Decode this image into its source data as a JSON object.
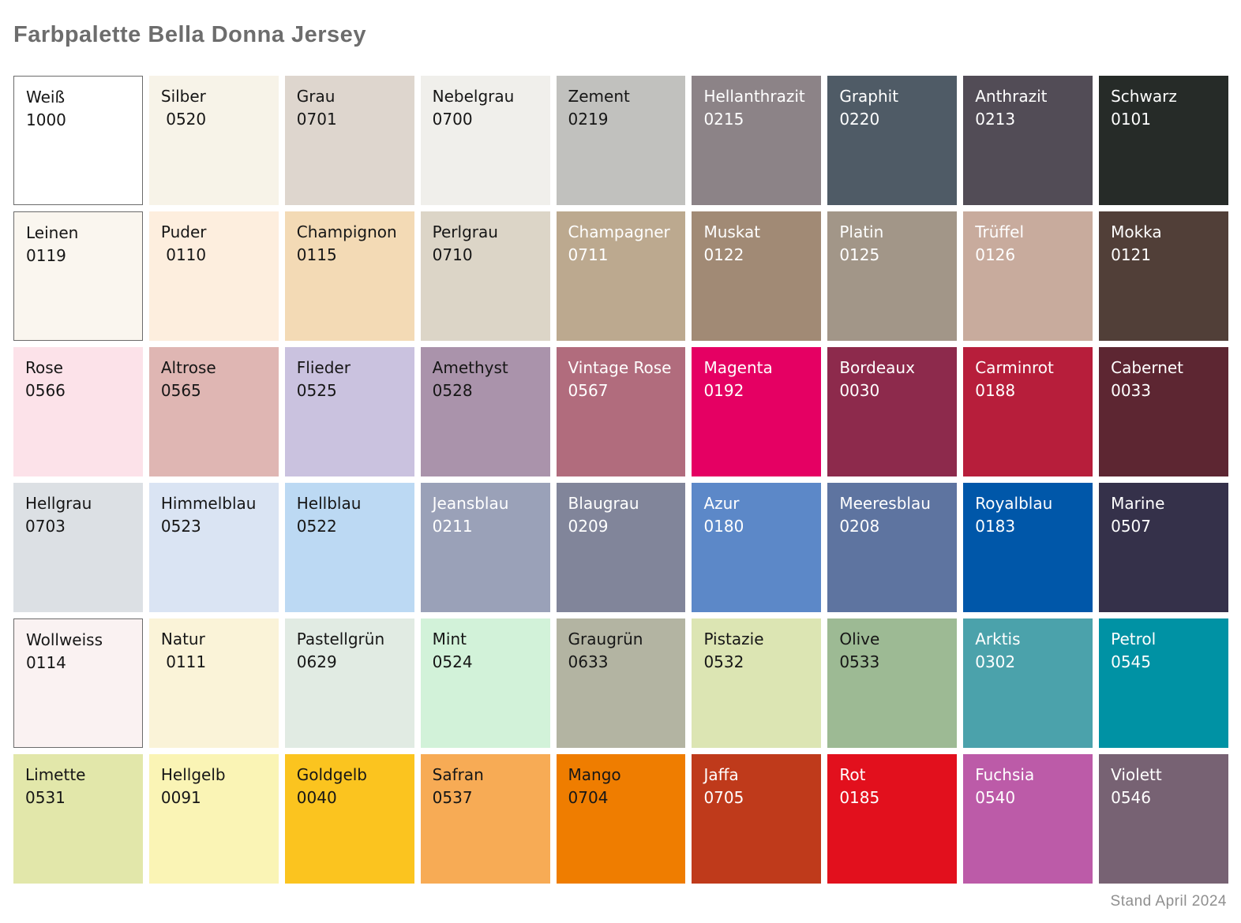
{
  "title": "Farbpalette Bella Donna Jersey",
  "footer": {
    "status_text": "Stand April 2024"
  },
  "palette": {
    "columns": 9,
    "rows": 6,
    "text_colors": {
      "dark": "#161616",
      "light": "#ffffff"
    },
    "outline_color": "#6b6b6b",
    "swatches": [
      {
        "name": "Weiß",
        "code": "1000",
        "color": "#ffffff",
        "text_tone": "dark",
        "outlined": true
      },
      {
        "name": "Silber",
        "code": " 0520",
        "color": "#f7f3e8",
        "text_tone": "dark",
        "outlined": false
      },
      {
        "name": "Grau",
        "code": "0701",
        "color": "#ded6ce",
        "text_tone": "dark",
        "outlined": false
      },
      {
        "name": "Nebelgrau",
        "code": "0700",
        "color": "#f0efeb",
        "text_tone": "dark",
        "outlined": false
      },
      {
        "name": "Zement",
        "code": "0219",
        "color": "#c1c1be",
        "text_tone": "dark",
        "outlined": false
      },
      {
        "name": "Hellanthrazit",
        "code": "0215",
        "color": "#8c8387",
        "text_tone": "light",
        "outlined": false
      },
      {
        "name": "Graphit",
        "code": "0220",
        "color": "#4f5b66",
        "text_tone": "light",
        "outlined": false
      },
      {
        "name": "Anthrazit",
        "code": "0213",
        "color": "#524c56",
        "text_tone": "light",
        "outlined": false
      },
      {
        "name": "Schwarz",
        "code": "0101",
        "color": "#262b28",
        "text_tone": "light",
        "outlined": false
      },
      {
        "name": "Leinen",
        "code": "0119",
        "color": "#faf6ef",
        "text_tone": "dark",
        "outlined": true
      },
      {
        "name": "Puder",
        "code": " 0110",
        "color": "#fdeede",
        "text_tone": "dark",
        "outlined": false
      },
      {
        "name": "Champignon",
        "code": "0115",
        "color": "#f3dab5",
        "text_tone": "dark",
        "outlined": false
      },
      {
        "name": "Perlgrau",
        "code": "0710",
        "color": "#dcd5c7",
        "text_tone": "dark",
        "outlined": false
      },
      {
        "name": "Champagner",
        "code": "0711",
        "color": "#bca98f",
        "text_tone": "light",
        "outlined": false
      },
      {
        "name": "Muskat",
        "code": "0122",
        "color": "#a18a75",
        "text_tone": "light",
        "outlined": false
      },
      {
        "name": "Platin",
        "code": "0125",
        "color": "#a29688",
        "text_tone": "light",
        "outlined": false
      },
      {
        "name": "Trüffel",
        "code": "0126",
        "color": "#c8ab9d",
        "text_tone": "light",
        "outlined": false
      },
      {
        "name": "Mokka",
        "code": "0121",
        "color": "#513f38",
        "text_tone": "light",
        "outlined": false
      },
      {
        "name": "Rose",
        "code": "0566",
        "color": "#fce2e9",
        "text_tone": "dark",
        "outlined": false
      },
      {
        "name": "Altrose",
        "code": "0565",
        "color": "#dfb6b3",
        "text_tone": "dark",
        "outlined": false
      },
      {
        "name": "Flieder",
        "code": "0525",
        "color": "#cac2df",
        "text_tone": "dark",
        "outlined": false
      },
      {
        "name": "Amethyst",
        "code": "0528",
        "color": "#aa93ab",
        "text_tone": "dark",
        "outlined": false
      },
      {
        "name": "Vintage Rose",
        "code": "0567",
        "color": "#b16c7d",
        "text_tone": "light",
        "outlined": false
      },
      {
        "name": "Magenta",
        "code": "0192",
        "color": "#e50063",
        "text_tone": "light",
        "outlined": false
      },
      {
        "name": "Bordeaux",
        "code": "0030",
        "color": "#8d2a4c",
        "text_tone": "light",
        "outlined": false
      },
      {
        "name": "Carminrot",
        "code": "0188",
        "color": "#b71e3b",
        "text_tone": "light",
        "outlined": false
      },
      {
        "name": "Cabernet",
        "code": "0033",
        "color": "#5d2632",
        "text_tone": "light",
        "outlined": false
      },
      {
        "name": "Hellgrau",
        "code": "0703",
        "color": "#dce0e4",
        "text_tone": "dark",
        "outlined": false
      },
      {
        "name": "Himmelblau",
        "code": "0523",
        "color": "#dae4f3",
        "text_tone": "dark",
        "outlined": false
      },
      {
        "name": "Hellblau",
        "code": "0522",
        "color": "#bcd9f3",
        "text_tone": "dark",
        "outlined": false
      },
      {
        "name": "Jeansblau",
        "code": "0211",
        "color": "#9aa1b8",
        "text_tone": "light",
        "outlined": false
      },
      {
        "name": "Blaugrau",
        "code": "0209",
        "color": "#81859a",
        "text_tone": "light",
        "outlined": false
      },
      {
        "name": "Azur",
        "code": "0180",
        "color": "#5c88c8",
        "text_tone": "light",
        "outlined": false
      },
      {
        "name": "Meeresblau",
        "code": "0208",
        "color": "#5e74a0",
        "text_tone": "light",
        "outlined": false
      },
      {
        "name": "Royalblau",
        "code": "0183",
        "color": "#0057a9",
        "text_tone": "light",
        "outlined": false
      },
      {
        "name": "Marine",
        "code": "0507",
        "color": "#35314a",
        "text_tone": "light",
        "outlined": false
      },
      {
        "name": "Wollweiss",
        "code": "0114",
        "color": "#faf2f2",
        "text_tone": "dark",
        "outlined": true
      },
      {
        "name": "Natur",
        "code": " 0111",
        "color": "#faf3d8",
        "text_tone": "dark",
        "outlined": false
      },
      {
        "name": "Pastellgrün",
        "code": "0629",
        "color": "#e1ebe3",
        "text_tone": "dark",
        "outlined": false
      },
      {
        "name": "Mint",
        "code": "0524",
        "color": "#d2f2d9",
        "text_tone": "dark",
        "outlined": false
      },
      {
        "name": "Graugrün",
        "code": "0633",
        "color": "#b3b4a2",
        "text_tone": "dark",
        "outlined": false
      },
      {
        "name": "Pistazie",
        "code": "0532",
        "color": "#dce5b3",
        "text_tone": "dark",
        "outlined": false
      },
      {
        "name": "Olive",
        "code": "0533",
        "color": "#9dba94",
        "text_tone": "dark",
        "outlined": false
      },
      {
        "name": "Arktis",
        "code": "0302",
        "color": "#4ba2ab",
        "text_tone": "light",
        "outlined": false
      },
      {
        "name": "Petrol",
        "code": "0545",
        "color": "#0092a4",
        "text_tone": "light",
        "outlined": false
      },
      {
        "name": "Limette",
        "code": "0531",
        "color": "#e2e7aa",
        "text_tone": "dark",
        "outlined": false
      },
      {
        "name": "Hellgelb",
        "code": "0091",
        "color": "#faf4b5",
        "text_tone": "dark",
        "outlined": false
      },
      {
        "name": "Goldgelb",
        "code": "0040",
        "color": "#fbc41f",
        "text_tone": "dark",
        "outlined": false
      },
      {
        "name": "Safran",
        "code": "0537",
        "color": "#f7ab55",
        "text_tone": "dark",
        "outlined": false
      },
      {
        "name": "Mango",
        "code": "0704",
        "color": "#ef7d00",
        "text_tone": "dark",
        "outlined": false
      },
      {
        "name": "Jaffa",
        "code": "0705",
        "color": "#bf3a1b",
        "text_tone": "light",
        "outlined": false
      },
      {
        "name": "Rot",
        "code": "0185",
        "color": "#e2101d",
        "text_tone": "light",
        "outlined": false
      },
      {
        "name": "Fuchsia",
        "code": "0540",
        "color": "#bc5ba8",
        "text_tone": "light",
        "outlined": false
      },
      {
        "name": "Violett",
        "code": "0546",
        "color": "#776273",
        "text_tone": "light",
        "outlined": false
      }
    ]
  }
}
